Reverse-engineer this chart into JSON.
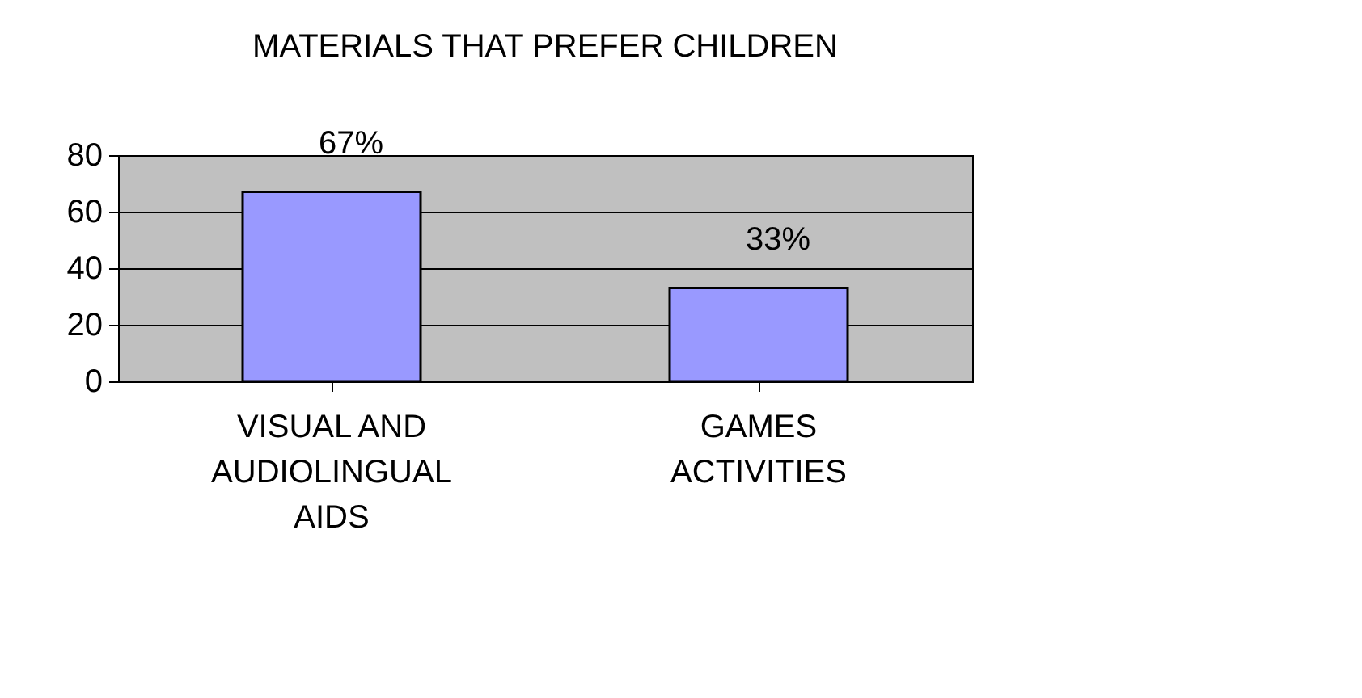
{
  "chart_data": {
    "type": "bar",
    "title": "MATERIALS THAT PREFER CHILDREN",
    "categories": [
      "VISUAL AND AUDIOLINGUAL AIDS",
      "GAMES ACTIVITIES"
    ],
    "values": [
      67,
      33
    ],
    "value_labels": [
      "67%",
      "33%"
    ],
    "color": "#9999ff",
    "ylim": [
      0,
      80
    ],
    "yticks": [
      0,
      20,
      40,
      60,
      80
    ],
    "grid": "y",
    "legend": false
  }
}
